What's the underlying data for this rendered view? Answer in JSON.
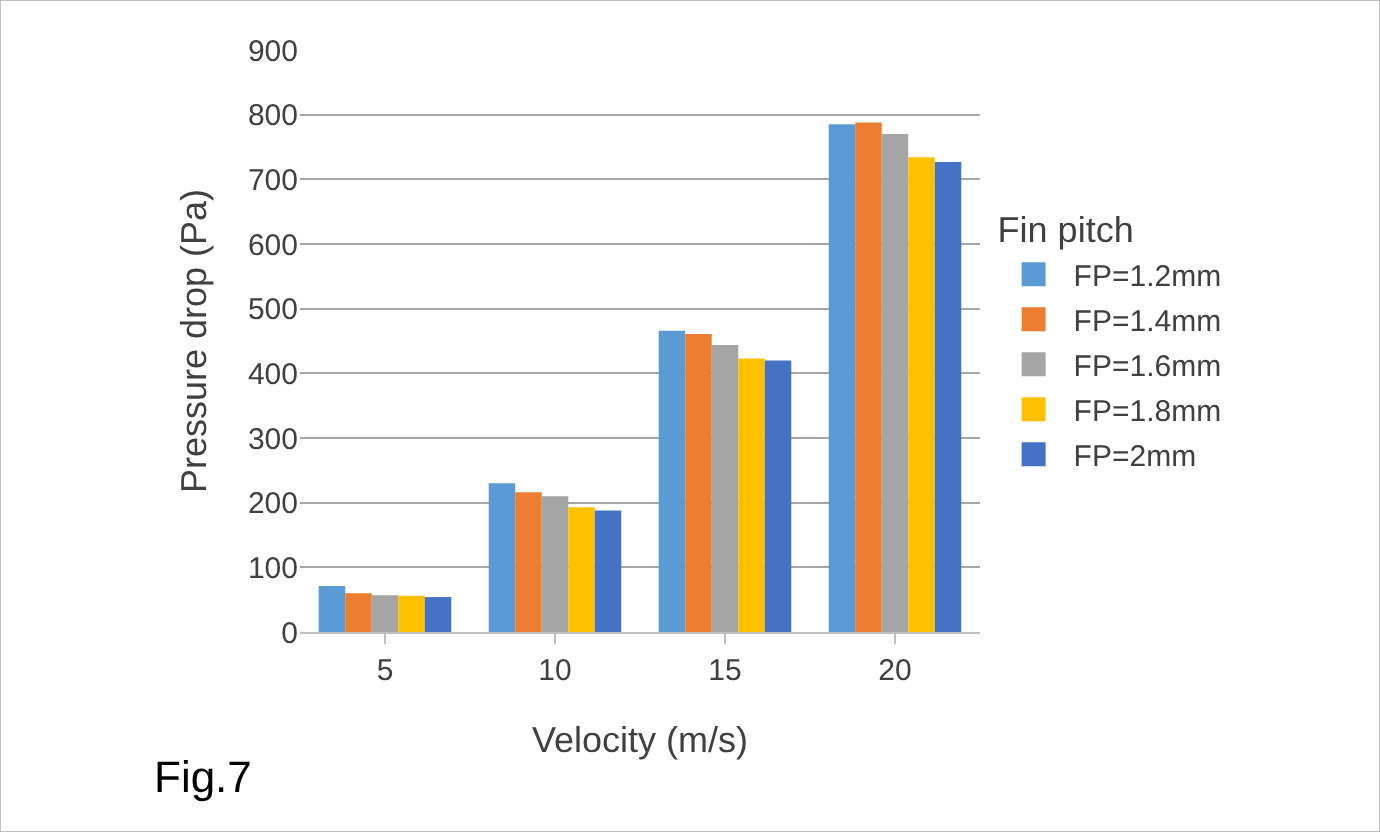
{
  "chart_data": {
    "type": "bar",
    "xlabel": "Velocity (m/s)",
    "ylabel": "Pressure drop (Pa)",
    "legend_title": "Fin pitch",
    "categories": [
      "5",
      "10",
      "15",
      "20"
    ],
    "series": [
      {
        "name": "FP=1.2mm",
        "color": "#5b9bd5",
        "values": [
          71,
          230,
          466,
          785
        ]
      },
      {
        "name": "FP=1.4mm",
        "color": "#ed7d31",
        "values": [
          60,
          216,
          461,
          788
        ]
      },
      {
        "name": "FP=1.6mm",
        "color": "#a5a5a5",
        "values": [
          57,
          210,
          444,
          770
        ]
      },
      {
        "name": "FP=1.8mm",
        "color": "#ffc000",
        "values": [
          56,
          193,
          423,
          734
        ]
      },
      {
        "name": "FP=2mm",
        "color": "#4472c4",
        "values": [
          54,
          188,
          420,
          727
        ]
      }
    ],
    "ylim": [
      0,
      900
    ],
    "yticks": [
      0,
      100,
      200,
      300,
      400,
      500,
      600,
      700,
      800,
      900
    ],
    "grid": "y",
    "legend": "right",
    "annotations": [
      "Fig.7"
    ]
  }
}
